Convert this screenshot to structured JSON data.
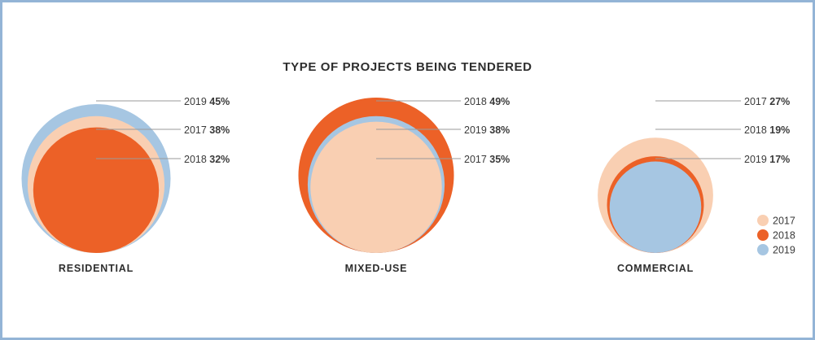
{
  "chart_data": {
    "type": "bubble",
    "title": "TYPE OF PROJECTS BEING TENDERED",
    "colors": {
      "2017": "#f9cfb2",
      "2018": "#ec6127",
      "2019": "#a6c6e2"
    },
    "legend": {
      "placement": "bottom-right",
      "entries": [
        "2017",
        "2018",
        "2019"
      ]
    },
    "groups": [
      {
        "name": "RESIDENTIAL",
        "items": [
          {
            "year": "2019",
            "value": 45,
            "label_year": "2019",
            "label_value": "45%"
          },
          {
            "year": "2017",
            "value": 38,
            "label_year": "2017",
            "label_value": "38%"
          },
          {
            "year": "2018",
            "value": 32,
            "label_year": "2018",
            "label_value": "32%"
          }
        ]
      },
      {
        "name": "MIXED-USE",
        "items": [
          {
            "year": "2018",
            "value": 49,
            "label_year": "2018",
            "label_value": "49%"
          },
          {
            "year": "2019",
            "value": 38,
            "label_year": "2019",
            "label_value": "38%"
          },
          {
            "year": "2017",
            "value": 35,
            "label_year": "2017",
            "label_value": "35%"
          }
        ]
      },
      {
        "name": "COMMERCIAL",
        "items": [
          {
            "year": "2017",
            "value": 27,
            "label_year": "2017",
            "label_value": "27%"
          },
          {
            "year": "2018",
            "value": 19,
            "label_year": "2018",
            "label_value": "19%"
          },
          {
            "year": "2019",
            "value": 17,
            "label_year": "2019",
            "label_value": "17%"
          }
        ]
      }
    ]
  }
}
